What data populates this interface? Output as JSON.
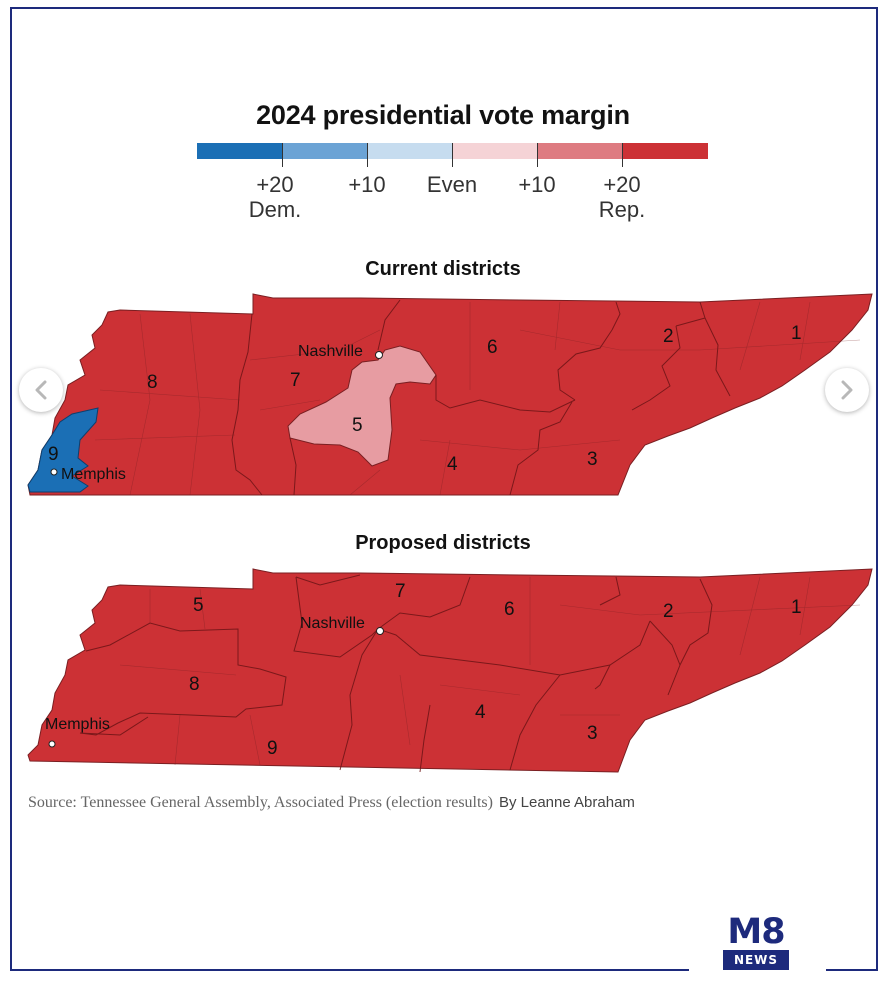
{
  "legend": {
    "title": "2024 presidential vote margin",
    "segments": [
      "#1b6fb5",
      "#6ba3d5",
      "#c6dcef",
      "#f5d3d6",
      "#de7b81",
      "#cc3135"
    ],
    "labels": [
      {
        "text": "+20",
        "sub": "Dem."
      },
      {
        "text": "+10",
        "sub": ""
      },
      {
        "text": "Even",
        "sub": ""
      },
      {
        "text": "+10",
        "sub": ""
      },
      {
        "text": "+20",
        "sub": "Rep."
      }
    ]
  },
  "current_map": {
    "title": "Current districts",
    "districts": [
      "1",
      "2",
      "3",
      "4",
      "5",
      "6",
      "7",
      "8",
      "9"
    ],
    "cities": [
      "Nashville",
      "Memphis"
    ]
  },
  "proposed_map": {
    "title": "Proposed districts",
    "districts": [
      "1",
      "2",
      "3",
      "4",
      "5",
      "6",
      "7",
      "8",
      "9"
    ],
    "cities": [
      "Nashville",
      "Memphis"
    ]
  },
  "colors": {
    "rep_strong": "#cc3135",
    "rep_lean": "#e79ca2",
    "dem_strong": "#1b6fb5",
    "border": "#1d2a7c"
  },
  "source": {
    "text": "Source: Tennessee General Assembly, Associated Press (election results)",
    "byline": "By Leanne Abraham"
  },
  "nav": {
    "prev_icon": "chevron-left-icon",
    "next_icon": "chevron-right-icon"
  },
  "logo": {
    "top": "M8",
    "bottom": "NEWS"
  }
}
